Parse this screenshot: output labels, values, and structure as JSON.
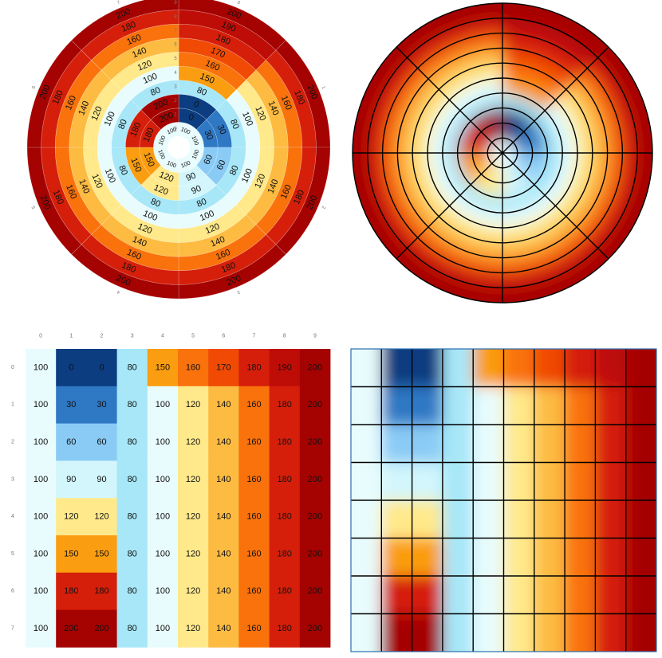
{
  "chart_data": [
    {
      "type": "heatmap",
      "subtype": "polar-labeled",
      "rows": 8,
      "cols": 10,
      "values": [
        [
          100,
          0,
          0,
          80,
          150,
          160,
          170,
          180,
          190,
          200
        ],
        [
          100,
          30,
          30,
          80,
          100,
          120,
          140,
          160,
          180,
          200
        ],
        [
          100,
          60,
          60,
          80,
          100,
          120,
          140,
          160,
          180,
          200
        ],
        [
          100,
          90,
          90,
          80,
          100,
          120,
          140,
          160,
          180,
          200
        ],
        [
          100,
          120,
          120,
          80,
          100,
          120,
          140,
          160,
          180,
          200
        ],
        [
          100,
          150,
          150,
          80,
          100,
          120,
          140,
          160,
          180,
          200
        ],
        [
          100,
          180,
          180,
          80,
          100,
          120,
          140,
          160,
          180,
          200
        ],
        [
          100,
          200,
          200,
          80,
          100,
          120,
          140,
          160,
          180,
          200
        ]
      ],
      "angular_tick_labels": [
        "0",
        "1",
        "2",
        "3",
        "4",
        "5",
        "6",
        "7"
      ],
      "radial_tick_labels": [
        "0",
        "1",
        "2",
        "3",
        "4",
        "5",
        "6",
        "7",
        "8",
        "9"
      ],
      "cell_labels": true
    },
    {
      "type": "heatmap",
      "subtype": "polar-smooth",
      "grid": true
    },
    {
      "type": "heatmap",
      "subtype": "cartesian-labeled",
      "row_tick_labels": [
        "0",
        "1",
        "2",
        "3",
        "4",
        "5",
        "6",
        "7"
      ],
      "col_tick_labels": [
        "0",
        "1",
        "2",
        "3",
        "4",
        "5",
        "6",
        "7",
        "8",
        "9"
      ],
      "cell_labels": true
    },
    {
      "type": "heatmap",
      "subtype": "cartesian-smooth",
      "grid": true
    }
  ],
  "colormap": {
    "stops": [
      [
        0,
        "#0b3d80"
      ],
      [
        30,
        "#2f78c4"
      ],
      [
        60,
        "#8acbf5"
      ],
      [
        80,
        "#a7e7f8"
      ],
      [
        90,
        "#d2f6fc"
      ],
      [
        100,
        "#e8fcfd"
      ],
      [
        120,
        "#ffe98a"
      ],
      [
        140,
        "#fdbb42"
      ],
      [
        150,
        "#fa9d10"
      ],
      [
        160,
        "#f9720b"
      ],
      [
        170,
        "#f04a05"
      ],
      [
        180,
        "#d51f0a"
      ],
      [
        190,
        "#be0d07"
      ],
      [
        200,
        "#a50202"
      ]
    ]
  }
}
